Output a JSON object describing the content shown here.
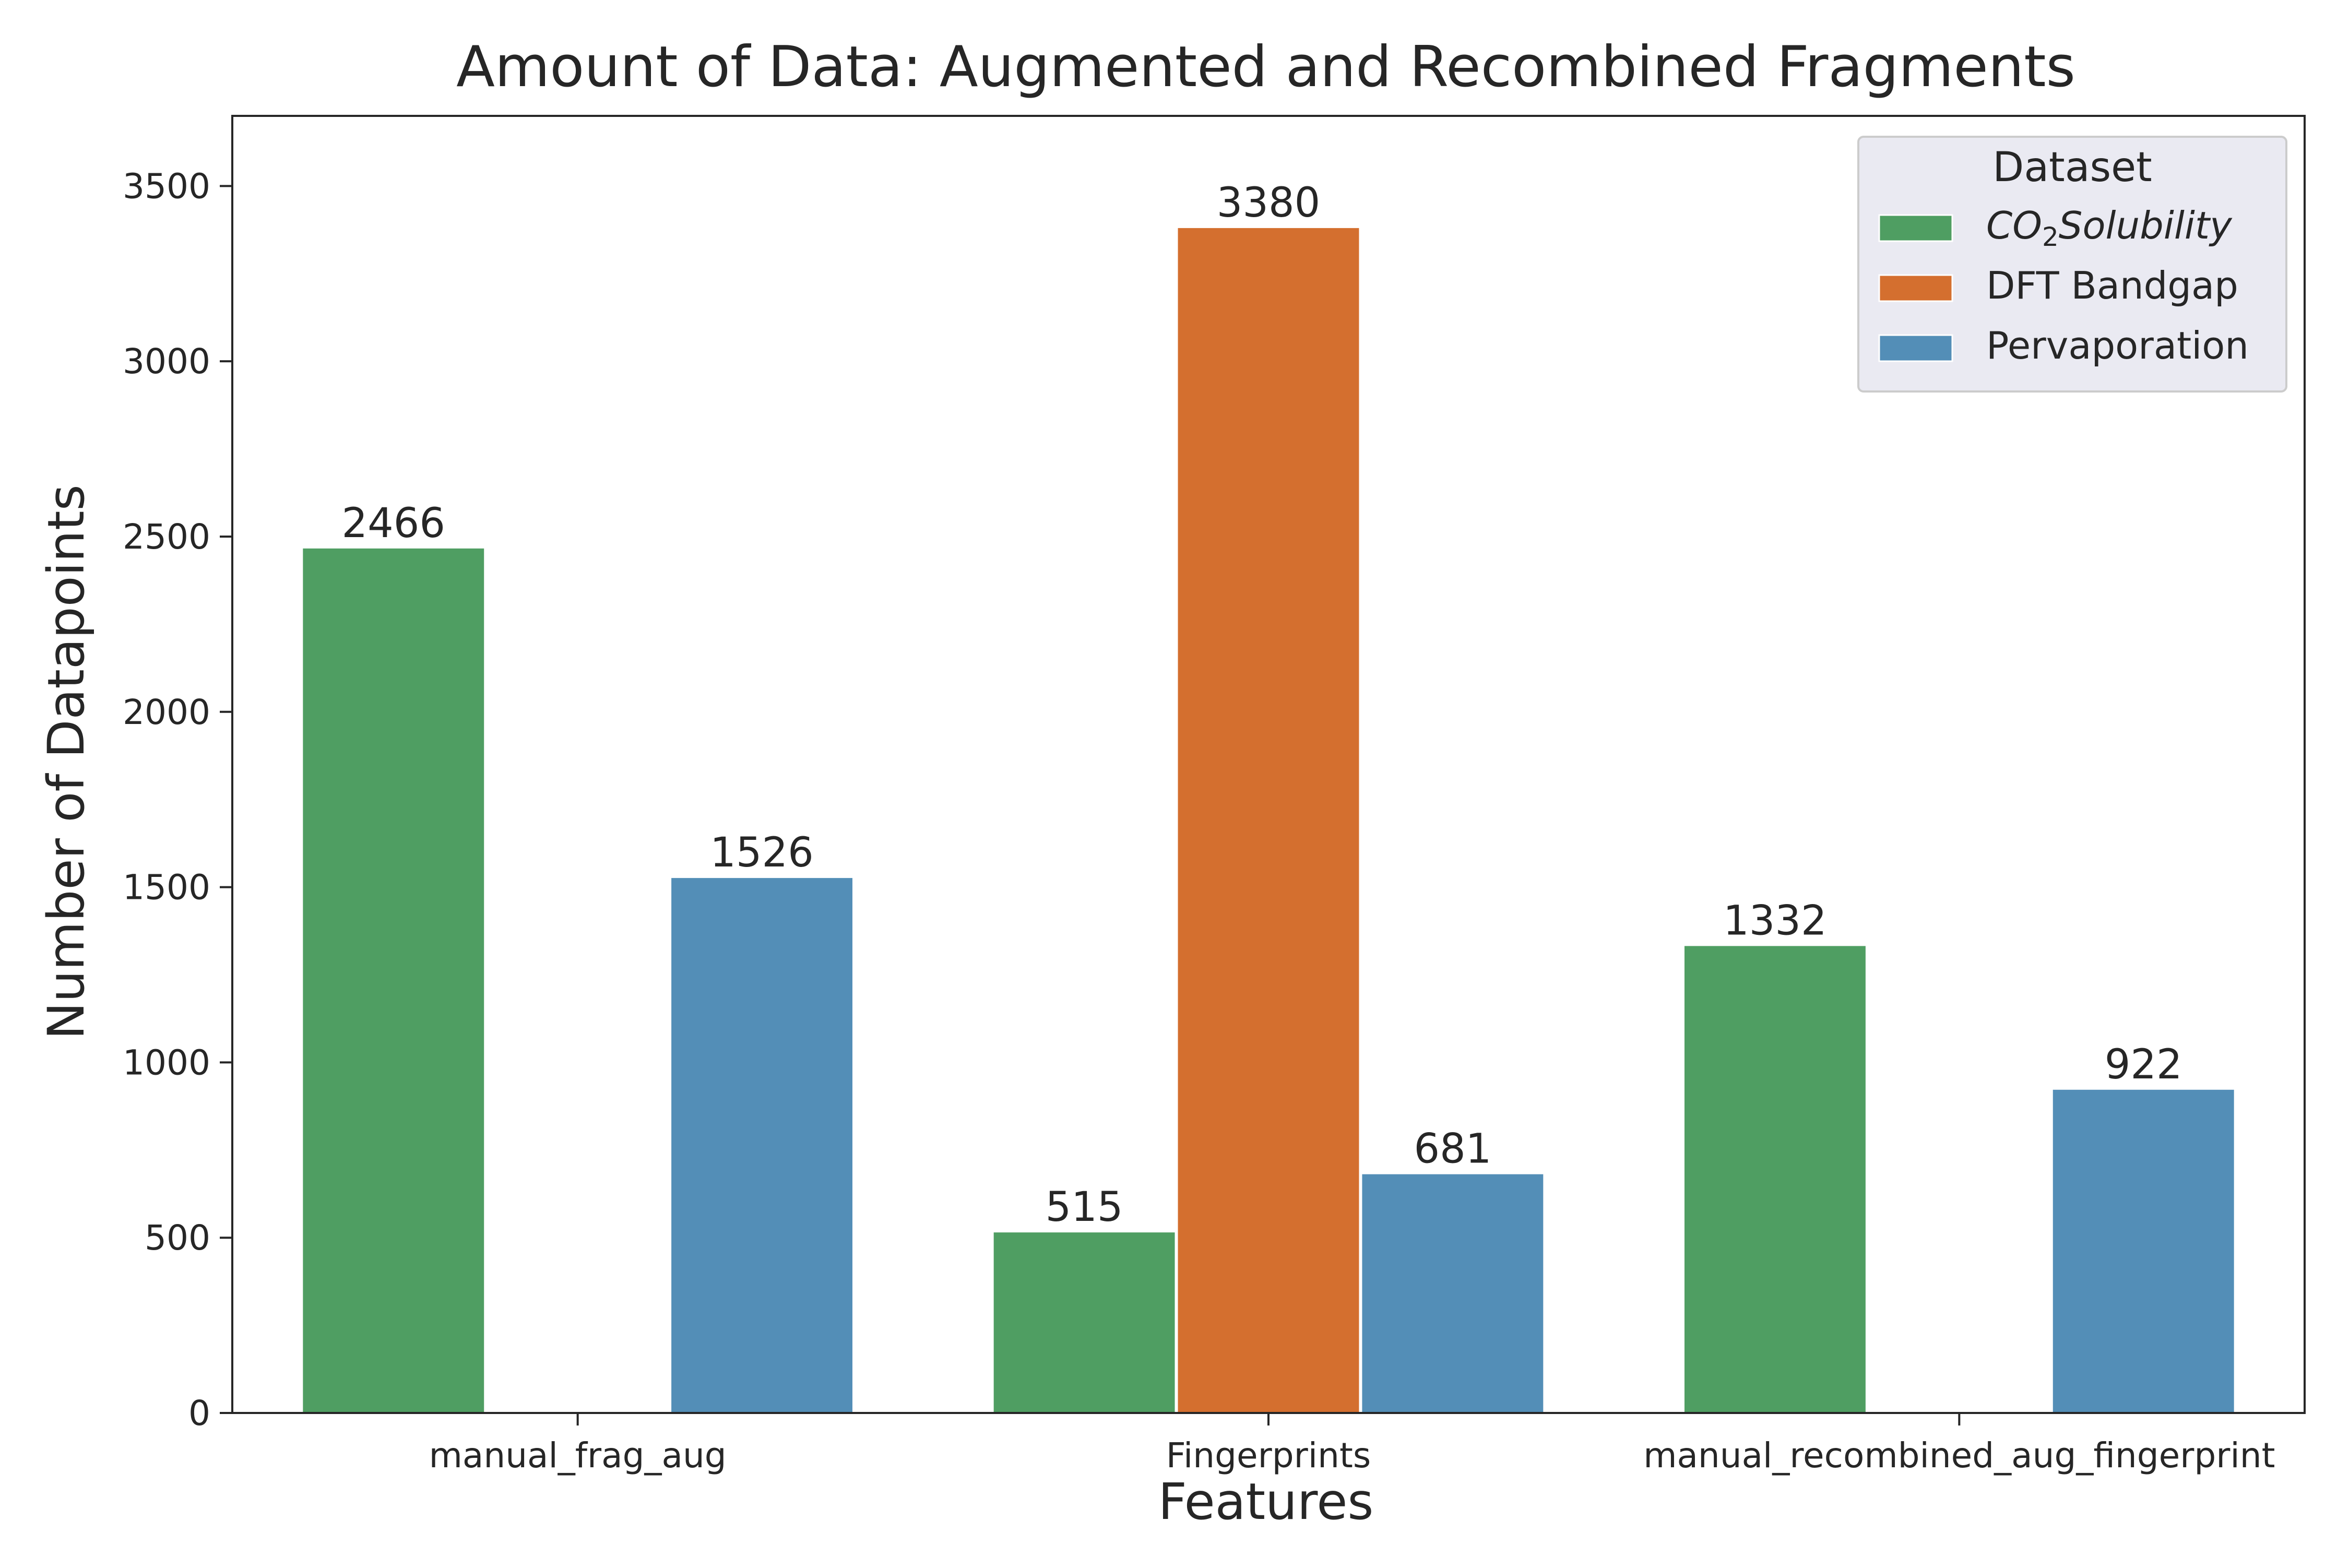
{
  "chart_data": {
    "type": "bar",
    "title": "Amount of Data: Augmented and Recombined Fragments",
    "xlabel": "Features",
    "ylabel": "Number of Datapoints",
    "categories": [
      "manual_frag_aug",
      "Fingerprints",
      "manual_recombined_aug_fingerprint"
    ],
    "series": [
      {
        "name": "CO2Solubility",
        "name_base": "CO",
        "name_sub": "2",
        "name_rest": "Solubility",
        "color": "#4f9e62",
        "values": [
          2466,
          515,
          1332
        ]
      },
      {
        "name": "DFT Bandgap",
        "color": "#d46f2f",
        "values": [
          null,
          3380,
          null
        ]
      },
      {
        "name": "Pervaporation",
        "color": "#538eb7",
        "values": [
          1526,
          681,
          922
        ]
      }
    ],
    "ylim": [
      0,
      3700
    ],
    "yticks": [
      0,
      500,
      1000,
      1500,
      2000,
      2500,
      3000,
      3500
    ],
    "grid": false,
    "legend": {
      "title": "Dataset",
      "placement": "top-right"
    }
  }
}
